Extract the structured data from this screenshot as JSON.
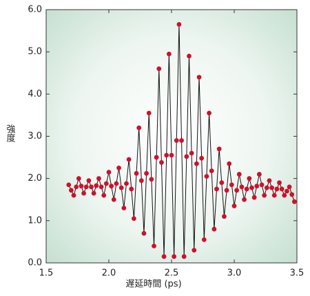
{
  "chart_data": {
    "type": "scatter",
    "x_label": "遅延時間 (ps)",
    "y_label": "強度",
    "xlim": [
      1.5,
      3.5
    ],
    "ylim": [
      0,
      6
    ],
    "xticks": [
      1.5,
      {
        "value": 2,
        "label": "2.0"
      },
      2.5,
      {
        "value": 3,
        "label": "3.0"
      },
      3.5
    ],
    "yticks": [
      {
        "value": 0,
        "label": "0.0"
      },
      {
        "value": 1,
        "label": "1.0"
      },
      {
        "value": 2,
        "label": "2.0"
      },
      {
        "value": 3,
        "label": "3.0"
      },
      {
        "value": 4,
        "label": "4.0"
      },
      {
        "value": 5,
        "label": "5.0"
      },
      {
        "value": 6,
        "label": "6.0"
      }
    ],
    "color": "#d0102a",
    "line_color": "#111111",
    "x": [
      1.68,
      1.7,
      1.72,
      1.74,
      1.76,
      1.78,
      1.8,
      1.82,
      1.84,
      1.86,
      1.88,
      1.9,
      1.92,
      1.94,
      1.96,
      1.98,
      2.0,
      2.02,
      2.04,
      2.06,
      2.08,
      2.1,
      2.12,
      2.14,
      2.16,
      2.18,
      2.2,
      2.22,
      2.24,
      2.26,
      2.28,
      2.3,
      2.32,
      2.34,
      2.36,
      2.38,
      2.4,
      2.42,
      2.44,
      2.46,
      2.48,
      2.5,
      2.52,
      2.54,
      2.56,
      2.58,
      2.6,
      2.62,
      2.64,
      2.66,
      2.68,
      2.7,
      2.72,
      2.74,
      2.76,
      2.78,
      2.8,
      2.82,
      2.84,
      2.86,
      2.88,
      2.9,
      2.92,
      2.94,
      2.96,
      2.98,
      3.0,
      3.02,
      3.04,
      3.06,
      3.08,
      3.1,
      3.12,
      3.14,
      3.16,
      3.18,
      3.2,
      3.22,
      3.24,
      3.26,
      3.28,
      3.3,
      3.32,
      3.34,
      3.36,
      3.38,
      3.4,
      3.42,
      3.44,
      3.46,
      3.48
    ],
    "values": [
      1.85,
      1.72,
      1.6,
      1.8,
      2.0,
      1.82,
      1.65,
      1.8,
      1.95,
      1.8,
      1.65,
      1.83,
      2.0,
      1.8,
      1.6,
      1.88,
      2.15,
      1.82,
      1.5,
      1.88,
      2.25,
      1.78,
      1.3,
      1.88,
      2.45,
      1.75,
      1.05,
      2.12,
      3.2,
      1.95,
      0.7,
      2.12,
      3.55,
      1.98,
      0.4,
      2.5,
      4.6,
      2.38,
      0.15,
      2.55,
      4.95,
      2.55,
      0.15,
      2.9,
      5.65,
      2.9,
      0.15,
      2.52,
      4.9,
      2.6,
      0.3,
      2.35,
      4.4,
      2.48,
      0.55,
      2.05,
      3.55,
      2.18,
      0.8,
      1.75,
      2.7,
      1.9,
      1.1,
      1.72,
      2.35,
      1.85,
      1.35,
      1.72,
      2.1,
      1.8,
      1.5,
      1.75,
      2.0,
      1.78,
      1.55,
      1.82,
      2.1,
      1.85,
      1.6,
      1.78,
      1.95,
      1.78,
      1.6,
      1.75,
      1.9,
      1.75,
      1.6,
      1.7,
      1.8,
      1.62,
      1.45
    ]
  }
}
